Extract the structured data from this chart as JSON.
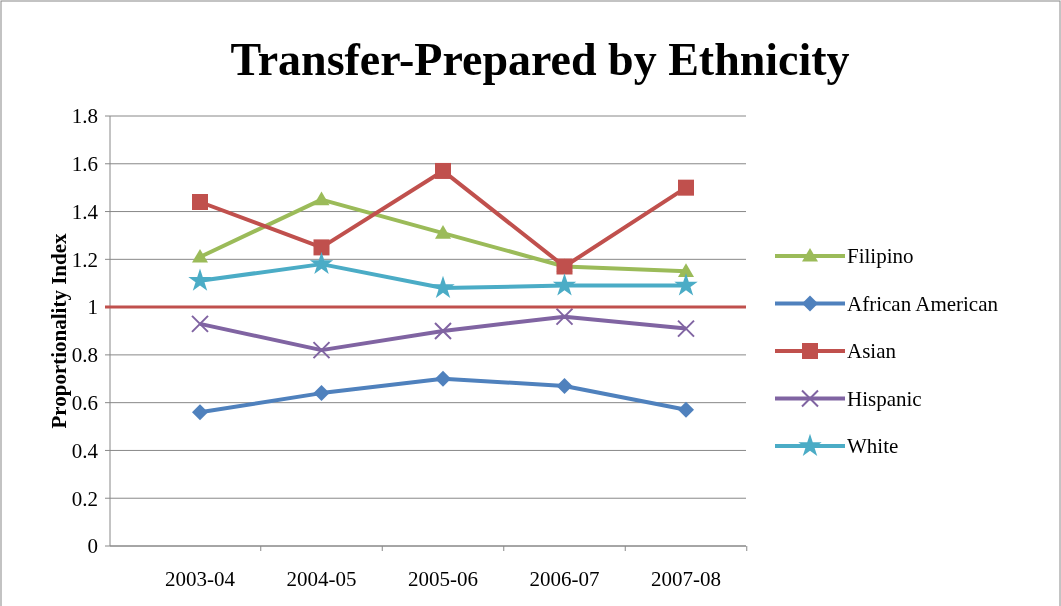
{
  "chart_data": {
    "type": "line",
    "title": "Transfer-Prepared by Ethnicity",
    "ylabel": "Proportionality Index",
    "categories": [
      "2003-04",
      "2004-05",
      "2005-06",
      "2006-07",
      "2007-08"
    ],
    "series": [
      {
        "name": "Filipino",
        "color": "#9bbb59",
        "marker": "triangle",
        "values": [
          1.21,
          1.45,
          1.31,
          1.17,
          1.15
        ]
      },
      {
        "name": "African American",
        "color": "#4f81bd",
        "marker": "diamond",
        "values": [
          0.56,
          0.64,
          0.7,
          0.67,
          0.57
        ]
      },
      {
        "name": "Asian",
        "color": "#c0504d",
        "marker": "square",
        "values": [
          1.44,
          1.25,
          1.57,
          1.17,
          1.5
        ]
      },
      {
        "name": "Hispanic",
        "color": "#8064a2",
        "marker": "cross",
        "values": [
          0.93,
          0.82,
          0.9,
          0.96,
          0.91
        ]
      },
      {
        "name": "White",
        "color": "#4bacc6",
        "marker": "star",
        "values": [
          1.11,
          1.18,
          1.08,
          1.09,
          1.09
        ]
      }
    ],
    "ylim": [
      0,
      1.8
    ],
    "yticks": [
      0,
      0.2,
      0.4,
      0.6,
      0.8,
      1,
      1.2,
      1.4,
      1.6,
      1.8
    ],
    "grid": "y",
    "legend": "right",
    "ref_lines": [
      {
        "axis": "y",
        "value": 1,
        "color": "#c0504d"
      }
    ]
  }
}
